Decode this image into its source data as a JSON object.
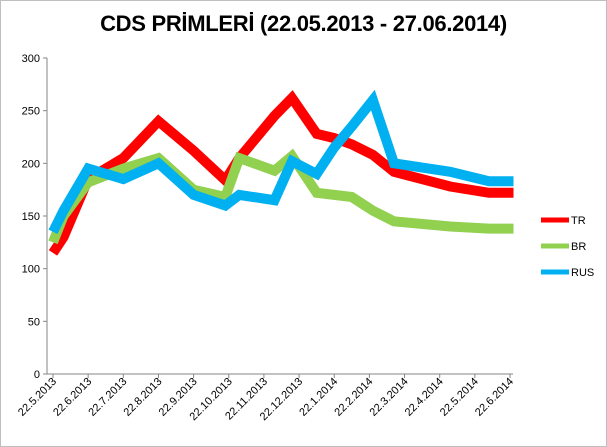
{
  "chart_data": {
    "type": "line",
    "title": "CDS PRİMLERİ (22.05.2013  - 27.06.2014)",
    "xlabel": "",
    "ylabel": "",
    "ylim": [
      0,
      300
    ],
    "yticks": [
      0,
      50,
      100,
      150,
      200,
      250,
      300
    ],
    "categories": [
      "22.5.2013",
      "22.6.2013",
      "22.7.2013",
      "22.8.2013",
      "22.9.2013",
      "22.10.2013",
      "22.11.2013",
      "22.12.2013",
      "22.1.2014",
      "22.2.2014",
      "22.3.2014",
      "22.4.2014",
      "22.5.2014",
      "22.6.2014"
    ],
    "x": [
      0,
      0.3,
      1,
      2,
      3,
      4,
      4.9,
      5.3,
      6.3,
      6.8,
      7.5,
      8,
      8.5,
      9.1,
      9.7,
      11.3,
      12.4,
      13.1
    ],
    "grid": false,
    "legend_position": "right",
    "series": [
      {
        "name": "TR",
        "color": "#ff0000",
        "x": [
          0,
          0.3,
          1,
          2,
          3,
          4,
          4.9,
          5.3,
          6.3,
          6.8,
          7.5,
          8,
          8.5,
          9.1,
          9.7,
          11.3,
          12.4,
          13.1
        ],
        "values": [
          115,
          130,
          185,
          205,
          240,
          212,
          184,
          205,
          245,
          262,
          228,
          224,
          218,
          208,
          192,
          178,
          172,
          172
        ]
      },
      {
        "name": "BR",
        "color": "#92d050",
        "x": [
          0,
          0.3,
          1,
          2,
          3,
          4,
          4.9,
          5.3,
          6.3,
          6.8,
          7.5,
          8,
          8.5,
          9.1,
          9.7,
          11.3,
          12.4,
          13.1
        ],
        "values": [
          125,
          150,
          182,
          195,
          205,
          175,
          168,
          205,
          193,
          207,
          172,
          170,
          168,
          155,
          145,
          140,
          138,
          138
        ]
      },
      {
        "name": "RUS",
        "color": "#00b0f0",
        "x": [
          0,
          0.3,
          1,
          2,
          3,
          4,
          4.9,
          5.3,
          6.3,
          6.8,
          7.5,
          8,
          8.5,
          9.1,
          9.7,
          11.3,
          12.4,
          13.1
        ],
        "values": [
          135,
          155,
          195,
          185,
          200,
          170,
          160,
          170,
          165,
          202,
          190,
          215,
          235,
          260,
          200,
          192,
          183,
          183
        ]
      }
    ]
  }
}
